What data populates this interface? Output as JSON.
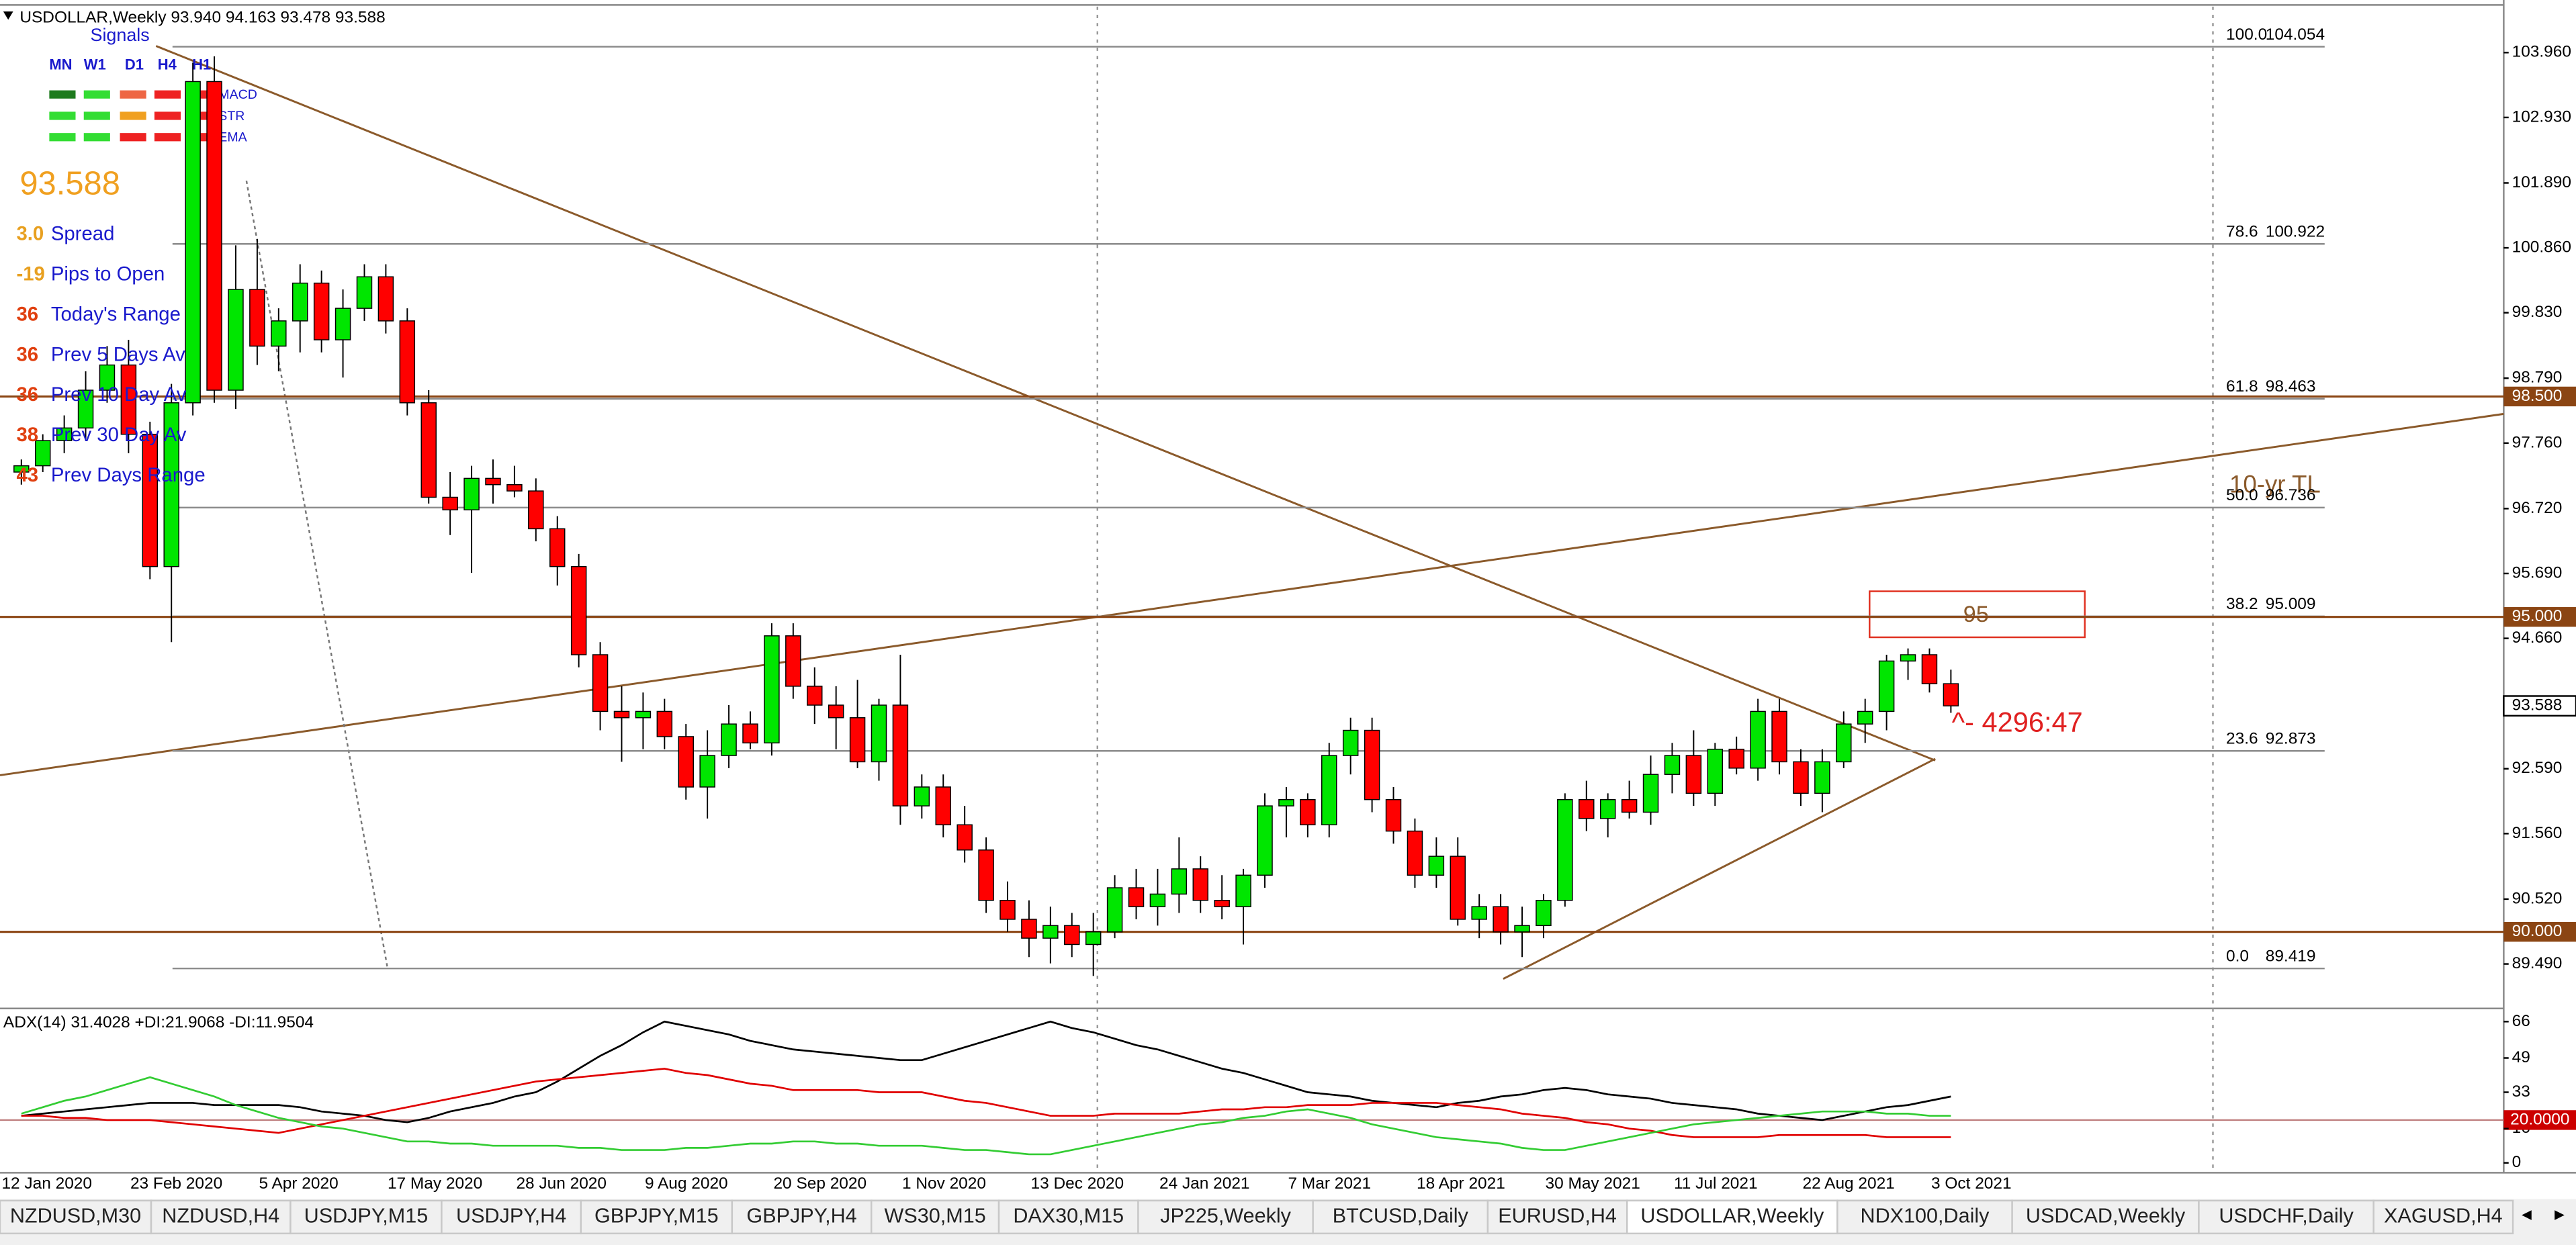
{
  "chart_data": [
    {
      "type": "candlestick",
      "title": "USDOLLAR,Weekly  93.940 94.163 93.478 93.588",
      "categories": [
        "12 Jan 2020",
        null,
        null,
        null,
        null,
        null,
        "23 Feb 2020",
        null,
        null,
        null,
        null,
        null,
        "5 Apr 2020",
        null,
        null,
        null,
        null,
        null,
        "17 May 2020",
        null,
        null,
        null,
        null,
        null,
        "28 Jun 2020",
        null,
        null,
        null,
        null,
        null,
        "9 Aug 2020",
        null,
        null,
        null,
        null,
        null,
        "20 Sep 2020",
        null,
        null,
        null,
        null,
        null,
        "1 Nov 2020",
        null,
        null,
        null,
        null,
        null,
        "13 Dec 2020",
        null,
        null,
        null,
        null,
        null,
        "24 Jan 2021",
        null,
        null,
        null,
        null,
        null,
        "7 Mar 2021",
        null,
        null,
        null,
        null,
        null,
        "18 Apr 2021",
        null,
        null,
        null,
        null,
        null,
        "30 May 2021",
        null,
        null,
        null,
        null,
        null,
        "11 Jul 2021",
        null,
        null,
        null,
        null,
        null,
        "22 Aug 2021",
        null,
        null,
        null,
        null,
        null,
        "3 Oct 2021"
      ],
      "open": [
        97.3,
        97.4,
        97.8,
        98.0,
        98.6,
        99.0,
        97.9,
        95.8,
        98.4,
        103.5,
        98.6,
        100.2,
        99.3,
        99.7,
        100.3,
        99.4,
        99.9,
        100.4,
        99.7,
        98.4,
        96.9,
        96.7,
        97.2,
        97.1,
        97.0,
        96.4,
        95.8,
        94.4,
        93.5,
        93.4,
        93.5,
        93.1,
        92.3,
        92.8,
        93.3,
        93.0,
        94.7,
        93.9,
        93.6,
        93.4,
        92.7,
        93.6,
        92.0,
        92.3,
        91.7,
        91.3,
        90.5,
        90.2,
        89.9,
        90.1,
        89.8,
        90.0,
        90.7,
        90.4,
        90.6,
        91.0,
        90.5,
        90.4,
        90.9,
        92.0,
        92.1,
        91.7,
        92.8,
        93.2,
        92.1,
        91.6,
        90.9,
        91.2,
        90.2,
        90.4,
        90.0,
        90.1,
        90.5,
        92.1,
        91.8,
        92.1,
        91.9,
        92.5,
        92.8,
        92.2,
        92.9,
        92.6,
        93.5,
        92.7,
        92.2,
        92.7,
        93.3,
        93.5,
        94.3,
        94.4,
        93.94
      ],
      "high": [
        97.5,
        97.9,
        98.2,
        98.9,
        99.3,
        99.4,
        98.1,
        98.7,
        103.8,
        103.9,
        100.9,
        101.0,
        99.9,
        100.6,
        100.5,
        100.2,
        100.6,
        100.6,
        99.9,
        98.6,
        97.3,
        97.4,
        97.5,
        97.4,
        97.2,
        96.6,
        96.0,
        94.6,
        93.9,
        93.8,
        93.7,
        93.3,
        93.2,
        93.6,
        93.5,
        94.9,
        94.9,
        94.2,
        93.9,
        94.0,
        93.7,
        94.4,
        92.5,
        92.5,
        92.0,
        91.5,
        90.8,
        90.5,
        90.4,
        90.3,
        90.3,
        90.9,
        91.0,
        91.0,
        91.5,
        91.2,
        90.9,
        91.0,
        92.2,
        92.3,
        92.2,
        93.0,
        93.4,
        93.4,
        92.3,
        91.8,
        91.5,
        91.5,
        90.6,
        90.6,
        90.4,
        90.6,
        92.2,
        92.4,
        92.2,
        92.4,
        92.8,
        93.0,
        93.2,
        93.0,
        93.1,
        93.7,
        93.7,
        92.9,
        92.9,
        93.5,
        93.7,
        94.4,
        94.5,
        94.5,
        94.163
      ],
      "low": [
        97.1,
        97.3,
        97.6,
        97.8,
        98.4,
        97.6,
        95.6,
        94.6,
        98.2,
        98.4,
        98.3,
        99.0,
        98.9,
        99.2,
        99.2,
        98.8,
        99.7,
        99.5,
        98.2,
        96.8,
        96.3,
        95.7,
        96.8,
        96.9,
        96.2,
        95.5,
        94.2,
        93.2,
        92.7,
        92.9,
        92.9,
        92.1,
        91.8,
        92.6,
        92.9,
        92.8,
        93.7,
        93.3,
        92.9,
        92.6,
        92.4,
        91.7,
        91.8,
        91.5,
        91.1,
        90.3,
        90.0,
        89.6,
        89.5,
        89.6,
        89.3,
        89.9,
        90.2,
        90.1,
        90.3,
        90.3,
        90.2,
        89.8,
        90.7,
        91.5,
        91.5,
        91.5,
        92.5,
        91.9,
        91.4,
        90.7,
        90.7,
        90.1,
        89.9,
        89.8,
        89.6,
        89.9,
        90.4,
        91.6,
        91.5,
        91.8,
        91.7,
        92.2,
        92.0,
        92.0,
        92.5,
        92.4,
        92.5,
        92.0,
        91.9,
        92.6,
        93.0,
        93.2,
        94.0,
        93.8,
        93.478
      ],
      "close": [
        97.4,
        97.8,
        98.0,
        98.6,
        99.0,
        97.9,
        95.8,
        98.4,
        103.5,
        98.6,
        100.2,
        99.3,
        99.7,
        100.3,
        99.4,
        99.9,
        100.4,
        99.7,
        98.4,
        96.9,
        96.7,
        97.2,
        97.1,
        97.0,
        96.4,
        95.8,
        94.4,
        93.5,
        93.4,
        93.5,
        93.1,
        92.3,
        92.8,
        93.3,
        93.0,
        94.7,
        93.9,
        93.6,
        93.4,
        92.7,
        93.6,
        92.0,
        92.3,
        91.7,
        91.3,
        90.5,
        90.2,
        89.9,
        90.1,
        89.8,
        90.0,
        90.7,
        90.4,
        90.6,
        91.0,
        90.5,
        90.4,
        90.9,
        92.0,
        92.1,
        91.7,
        92.8,
        93.2,
        92.1,
        91.6,
        90.9,
        91.2,
        90.2,
        90.4,
        90.0,
        90.1,
        90.5,
        92.1,
        91.8,
        92.1,
        91.9,
        92.5,
        92.8,
        92.2,
        92.9,
        92.6,
        93.5,
        92.7,
        92.2,
        92.7,
        93.3,
        93.5,
        94.3,
        94.4,
        93.94,
        93.588
      ],
      "up_color": "#00e600",
      "down_color": "#ff0000",
      "ylim": [
        88.81,
        104.69
      ],
      "yticks": [
        {
          "value": 103.96,
          "label": "103.960"
        },
        {
          "value": 102.93,
          "label": "102.930"
        },
        {
          "value": 101.89,
          "label": "101.890"
        },
        {
          "value": 100.86,
          "label": "100.860"
        },
        {
          "value": 99.83,
          "label": "99.830"
        },
        {
          "value": 98.79,
          "label": "98.790"
        },
        {
          "value": 97.76,
          "label": "97.760"
        },
        {
          "value": 96.72,
          "label": "96.720"
        },
        {
          "value": 95.69,
          "label": "95.690"
        },
        {
          "value": 94.66,
          "label": "94.660"
        },
        {
          "value": 92.59,
          "label": "92.590"
        },
        {
          "value": 91.56,
          "label": "91.560"
        },
        {
          "value": 90.52,
          "label": "90.520"
        },
        {
          "value": 89.49,
          "label": "89.490"
        }
      ],
      "levels": [
        {
          "value": 98.5,
          "label": "98.500"
        },
        {
          "value": 95,
          "label": "95.000"
        },
        {
          "value": 90,
          "label": "90.000"
        }
      ],
      "level_color": "#8b4513",
      "current_price": {
        "value": 93.588,
        "label": "93.588"
      },
      "fib_levels": [
        {
          "level": "100.0",
          "value": 104.054,
          "label": "104.054"
        },
        {
          "level": "78.6",
          "value": 100.922,
          "label": "100.922"
        },
        {
          "level": "61.8",
          "value": 98.463,
          "label": "98.463"
        },
        {
          "level": "50.0",
          "value": 96.736,
          "label": "96.736"
        },
        {
          "level": "38.2",
          "value": 95.009,
          "label": "95.009"
        },
        {
          "level": "23.6",
          "value": 92.873,
          "label": "92.873"
        },
        {
          "level": "0.0",
          "value": 89.419,
          "label": "89.419"
        }
      ],
      "annotations": [
        "10-yr TL",
        "95",
        "^- 4296:47"
      ]
    },
    {
      "type": "line",
      "title": "ADX(14) 31.4028 +DI:21.9068 -DI:11.9504",
      "ylim": [
        0,
        66
      ],
      "yticks": [
        66,
        49,
        33,
        16,
        0
      ],
      "level": {
        "value": 20,
        "label": "20.0000"
      },
      "series": [
        {
          "color": "#000000",
          "values": [
            22,
            23,
            24,
            25,
            26,
            27,
            28,
            28,
            28,
            27,
            27,
            27,
            27,
            26,
            24,
            23,
            22,
            20,
            19,
            21,
            24,
            26,
            28,
            31,
            33,
            38,
            44,
            50,
            55,
            61,
            66,
            64,
            62,
            60,
            57,
            55,
            53,
            52,
            51,
            50,
            49,
            48,
            48,
            51,
            54,
            57,
            60,
            63,
            66,
            63,
            61,
            58,
            55,
            53,
            50,
            47,
            44,
            42,
            39,
            36,
            33,
            32,
            31,
            29,
            28,
            27,
            26,
            28,
            29,
            31,
            32,
            34,
            35,
            34,
            32,
            31,
            30,
            28,
            27,
            26,
            25,
            23,
            22,
            21,
            20,
            22,
            24,
            26,
            27,
            29,
            31
          ]
        },
        {
          "color": "#e00000",
          "values": [
            22,
            22,
            21,
            21,
            20,
            20,
            20,
            19,
            18,
            17,
            16,
            15,
            14,
            16,
            18,
            20,
            22,
            24,
            26,
            28,
            30,
            32,
            34,
            36,
            38,
            39,
            40,
            41,
            42,
            43,
            44,
            42,
            41,
            39,
            37,
            36,
            34,
            34,
            34,
            34,
            33,
            33,
            33,
            31,
            29,
            28,
            26,
            24,
            22,
            22,
            22,
            23,
            23,
            23,
            23,
            24,
            25,
            25,
            26,
            26,
            27,
            27,
            27,
            28,
            28,
            28,
            28,
            27,
            26,
            25,
            23,
            22,
            21,
            19,
            18,
            16,
            15,
            13,
            12,
            12,
            12,
            12,
            13,
            13,
            13,
            13,
            13,
            12,
            12,
            12,
            12
          ]
        },
        {
          "color": "#33cc33",
          "values": [
            23,
            26,
            29,
            31,
            34,
            37,
            40,
            37,
            34,
            31,
            27,
            24,
            21,
            19,
            17,
            16,
            14,
            12,
            10,
            10,
            9,
            9,
            8,
            8,
            8,
            8,
            7,
            7,
            6,
            6,
            6,
            7,
            7,
            8,
            9,
            9,
            10,
            10,
            9,
            9,
            8,
            8,
            8,
            7,
            6,
            6,
            5,
            4,
            4,
            6,
            8,
            10,
            12,
            14,
            16,
            18,
            19,
            21,
            22,
            24,
            25,
            23,
            21,
            18,
            16,
            14,
            12,
            11,
            10,
            9,
            7,
            6,
            6,
            8,
            10,
            12,
            14,
            16,
            18,
            19,
            20,
            21,
            22,
            23,
            24,
            24,
            24,
            23,
            23,
            22,
            22
          ]
        }
      ]
    }
  ],
  "signals_panel": {
    "title": "Signals",
    "timeframes": [
      "MN",
      "W1",
      "D1",
      "H4",
      "H1"
    ],
    "indicators": [
      "MACD",
      "STR",
      "EMA"
    ],
    "price": "93.588",
    "stats": [
      {
        "value": "3.0",
        "label": "Spread"
      },
      {
        "value": "-19",
        "label": "Pips to Open"
      },
      {
        "value": "36",
        "label": "Today's Range"
      },
      {
        "value": "36",
        "label": "Prev 5 Days Av"
      },
      {
        "value": "36",
        "label": "Prev 10 Day Av"
      },
      {
        "value": "38",
        "label": "Prev 30 Day Av"
      },
      {
        "value": "43",
        "label": "Prev Days Range"
      }
    ]
  },
  "tabs": [
    {
      "label": "NZDUSD,M30"
    },
    {
      "label": "NZDUSD,H4"
    },
    {
      "label": "USDJPY,M15"
    },
    {
      "label": "USDJPY,H4"
    },
    {
      "label": "GBPJPY,M15"
    },
    {
      "label": "GBPJPY,H4"
    },
    {
      "label": "WS30,M15"
    },
    {
      "label": "DAX30,M15"
    },
    {
      "label": "JP225,Weekly"
    },
    {
      "label": "BTCUSD,Daily"
    },
    {
      "label": "EURUSD,H4"
    },
    {
      "label": "USDOLLAR,Weekly",
      "active": true
    },
    {
      "label": "NDX100,Daily"
    },
    {
      "label": "USDCAD,Weekly"
    },
    {
      "label": "USDCHF,Daily"
    },
    {
      "label": "XAGUSD,H4"
    }
  ]
}
